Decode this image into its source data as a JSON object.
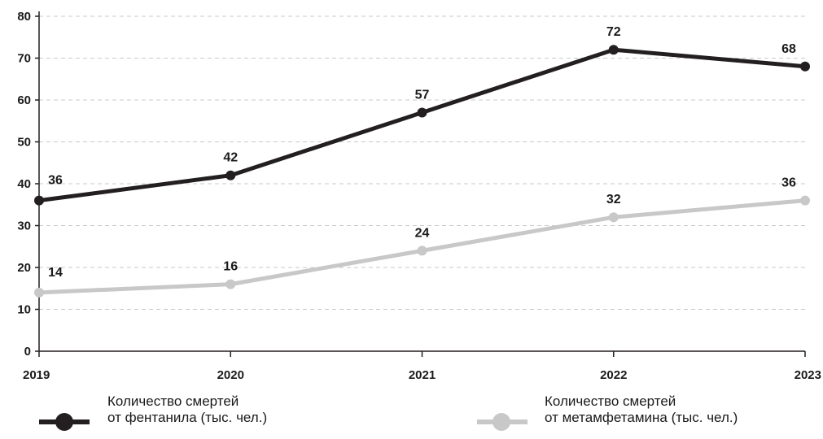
{
  "chart_data": {
    "type": "line",
    "title": "",
    "xlabel": "",
    "ylabel": "",
    "categories": [
      "2019",
      "2020",
      "2021",
      "2022",
      "2023"
    ],
    "ylim": [
      0,
      80
    ],
    "yticks": [
      "0",
      "10",
      "20",
      "30",
      "40",
      "50",
      "60",
      "70",
      "80"
    ],
    "grid": true,
    "legend_position": "bottom",
    "series": [
      {
        "name": "Количество смертей от фентанила (тыс. чел.)",
        "legend_lines": [
          "Количество смертей",
          "от фентанила (тыс. чел.)"
        ],
        "values": [
          36,
          42,
          57,
          72,
          68
        ],
        "labels": [
          "36",
          "42",
          "57",
          "72",
          "68"
        ],
        "color": "#231f20"
      },
      {
        "name": "Количество смертей от метамфетамина (тыс. чел.)",
        "legend_lines": [
          "Количество смертей",
          "от метамфетамина (тыс. чел.)"
        ],
        "values": [
          14,
          16,
          24,
          32,
          36
        ],
        "labels": [
          "14",
          "16",
          "24",
          "32",
          "36"
        ],
        "color": "#c8c8c8"
      }
    ]
  }
}
